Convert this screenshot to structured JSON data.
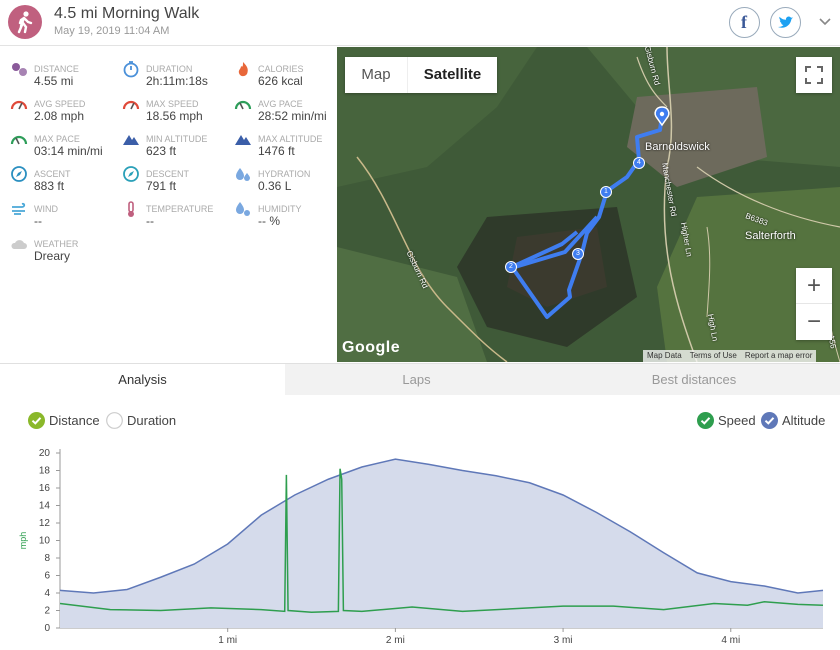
{
  "header": {
    "title": "4.5 mi Morning Walk",
    "date": "May 19, 2019 11:04 AM",
    "facebook_label": "f"
  },
  "stats": [
    {
      "label": "DISTANCE",
      "value": "4.55 mi",
      "icon": "route-icon",
      "color": "#8a5a9a"
    },
    {
      "label": "DURATION",
      "value": "2h:11m:18s",
      "icon": "stopwatch-icon",
      "color": "#4a90d9"
    },
    {
      "label": "CALORIES",
      "value": "626 kcal",
      "icon": "flame-icon",
      "color": "#e8673a"
    },
    {
      "label": "AVG SPEED",
      "value": "2.08 mph",
      "icon": "speedometer-icon",
      "color": "#e04a3a"
    },
    {
      "label": "MAX SPEED",
      "value": "18.56 mph",
      "icon": "speedometer-icon",
      "color": "#e04a3a"
    },
    {
      "label": "AVG PACE",
      "value": "28:52 min/mi",
      "icon": "pace-icon",
      "color": "#2e9e5a"
    },
    {
      "label": "MAX PACE",
      "value": "03:14 min/mi",
      "icon": "pace-icon",
      "color": "#2e9e5a"
    },
    {
      "label": "MIN ALTITUDE",
      "value": "623 ft",
      "icon": "mountain-icon",
      "color": "#3b5ea8"
    },
    {
      "label": "MAX ALTITUDE",
      "value": "1476 ft",
      "icon": "mountain-icon",
      "color": "#3b5ea8"
    },
    {
      "label": "ASCENT",
      "value": "883 ft",
      "icon": "compass-icon",
      "color": "#2a8fc0"
    },
    {
      "label": "DESCENT",
      "value": "791 ft",
      "icon": "compass-icon",
      "color": "#2aa0b8"
    },
    {
      "label": "HYDRATION",
      "value": "0.36 L",
      "icon": "drops-icon",
      "color": "#7aa8e0"
    },
    {
      "label": "WIND",
      "value": "--",
      "icon": "wind-icon",
      "color": "#4aa8d8"
    },
    {
      "label": "TEMPERATURE",
      "value": "--",
      "icon": "thermometer-icon",
      "color": "#c0607f"
    },
    {
      "label": "HUMIDITY",
      "value": "-- %",
      "icon": "humidity-icon",
      "color": "#7aa8e0"
    },
    {
      "label": "WEATHER",
      "value": "Dreary",
      "icon": "cloud-icon",
      "color": "#cccccc"
    }
  ],
  "map": {
    "toggle_map": "Map",
    "toggle_satellite": "Satellite",
    "zoom_in": "+",
    "zoom_out": "−",
    "google_logo": "Google",
    "attribution": [
      "Map Data",
      "Terms of Use",
      "Report a map error"
    ],
    "places": [
      "Barnoldswick",
      "Salterforth"
    ],
    "roads": [
      "Gisburn Rd",
      "Gisburn Rd",
      "Manchester Rd",
      "B6383",
      "Higher Ln",
      "High Ln",
      "A56"
    ],
    "markers": [
      "1",
      "2",
      "3",
      "4"
    ],
    "route_color": "#3f7df0"
  },
  "tabs": [
    "Analysis",
    "Laps",
    "Best distances"
  ],
  "legend": {
    "distance": "Distance",
    "duration": "Duration",
    "speed": "Speed",
    "altitude": "Altitude",
    "distance_color": "#8ab82a",
    "speed_color": "#2e9e4e",
    "altitude_color": "#5f78b8"
  },
  "chart_data": {
    "type": "area",
    "ylabel": "mph",
    "xlim": [
      0,
      4.55
    ],
    "ylim": [
      0,
      20
    ],
    "yticks": [
      0,
      2,
      4,
      6,
      8,
      10,
      12,
      14,
      16,
      18,
      20
    ],
    "xticks": [
      "1 mi",
      "2 mi",
      "3 mi",
      "4 mi"
    ],
    "xtick_values": [
      1,
      2,
      3,
      4
    ],
    "series": [
      {
        "name": "Altitude",
        "x": [
          0,
          0.2,
          0.4,
          0.6,
          0.8,
          1.0,
          1.2,
          1.4,
          1.6,
          1.8,
          2.0,
          2.2,
          2.4,
          2.6,
          2.8,
          3.0,
          3.2,
          3.4,
          3.6,
          3.8,
          4.0,
          4.2,
          4.4,
          4.55
        ],
        "values": [
          4.3,
          4.0,
          4.4,
          5.8,
          7.3,
          9.6,
          12.9,
          15.2,
          17.0,
          18.4,
          19.3,
          18.7,
          18.0,
          17.4,
          16.6,
          15.2,
          13.2,
          11.0,
          8.6,
          6.3,
          5.3,
          4.8,
          4.0,
          4.3
        ]
      },
      {
        "name": "Speed",
        "x": [
          0,
          0.3,
          0.6,
          0.9,
          1.2,
          1.34,
          1.35,
          1.36,
          1.5,
          1.66,
          1.67,
          1.68,
          1.69,
          1.8,
          2.1,
          2.4,
          2.7,
          3.0,
          3.3,
          3.6,
          3.9,
          4.1,
          4.2,
          4.4,
          4.55
        ],
        "values": [
          2.8,
          2.1,
          2.0,
          2.3,
          2.1,
          1.9,
          17.5,
          2.0,
          1.8,
          1.9,
          18.2,
          17.0,
          2.0,
          1.9,
          2.4,
          1.9,
          2.2,
          2.5,
          2.5,
          2.1,
          2.8,
          2.6,
          3.0,
          2.7,
          2.6
        ]
      }
    ]
  }
}
